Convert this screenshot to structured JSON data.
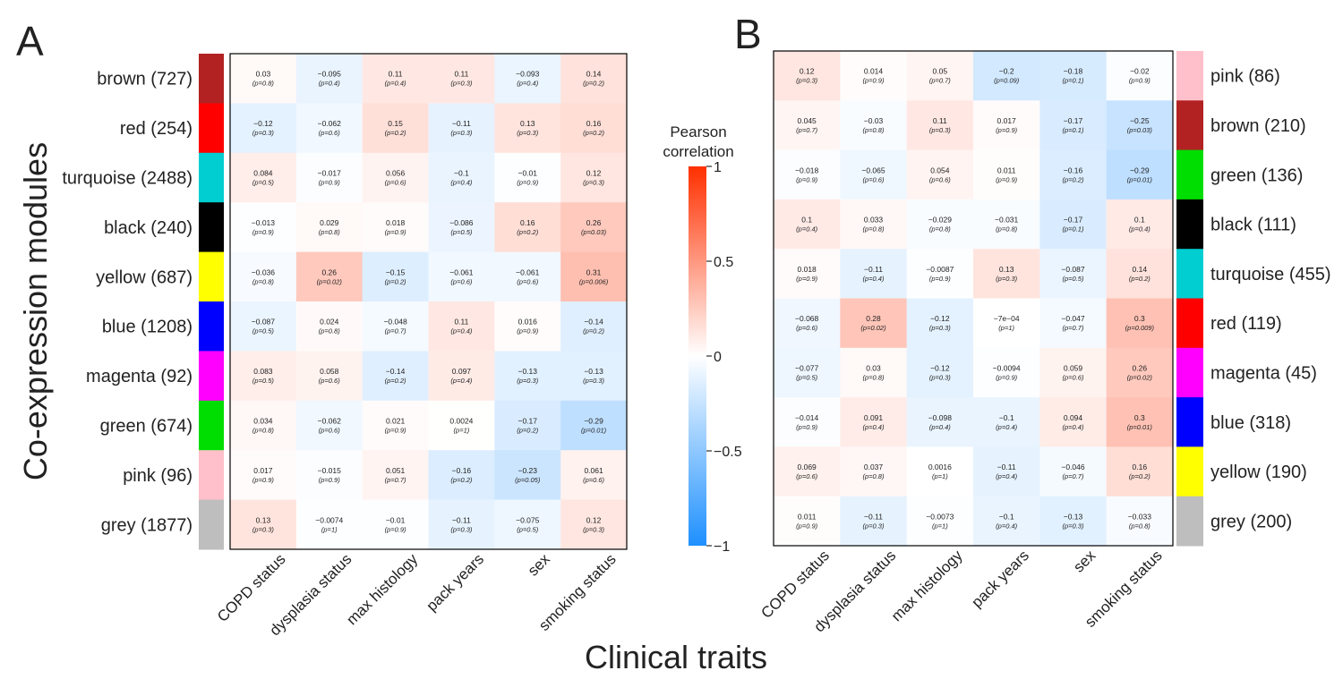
{
  "figure": {
    "y_axis_title": "Co-expression modules",
    "x_axis_title": "Clinical traits",
    "colorbar": {
      "title": [
        "Pearson",
        "correlation"
      ],
      "ticks": [
        {
          "value": 1,
          "label": "1"
        },
        {
          "value": 0.5,
          "label": "0.5"
        },
        {
          "value": 0,
          "label": "0"
        },
        {
          "value": -0.5,
          "label": "−0.5"
        },
        {
          "value": -1,
          "label": "−1"
        }
      ],
      "range": [
        -1,
        1
      ],
      "colors": {
        "negative": "#1E90FF",
        "zero": "#FFFFFF",
        "positive": "#FF3000"
      }
    }
  },
  "chart_data": [
    {
      "type": "heatmap",
      "panel": "A",
      "traits": [
        "COPD status",
        "dysplasia status",
        "max  histology",
        "pack  years",
        "sex",
        "smoking  status"
      ],
      "modules": [
        {
          "label": "brown (727)",
          "color": "#B22222"
        },
        {
          "label": "red (254)",
          "color": "#FF0000"
        },
        {
          "label": "turquoise (2488)",
          "color": "#00CED1"
        },
        {
          "label": "black (240)",
          "color": "#000000"
        },
        {
          "label": "yellow (687)",
          "color": "#FFFF00"
        },
        {
          "label": "blue (1208)",
          "color": "#0000FF"
        },
        {
          "label": "magenta (92)",
          "color": "#FF00FF"
        },
        {
          "label": "green (674)",
          "color": "#00DD00"
        },
        {
          "label": "pink (96)",
          "color": "#FFC0CB"
        },
        {
          "label": "grey (1877)",
          "color": "#BEBEBE"
        }
      ],
      "r": [
        [
          "0.03",
          "−0.095",
          "0.11",
          "0.11",
          "−0.093",
          "0.14"
        ],
        [
          "−0.12",
          "−0.062",
          "0.15",
          "−0.11",
          "0.13",
          "0.16"
        ],
        [
          "0.084",
          "−0.017",
          "0.056",
          "−0.1",
          "−0.01",
          "0.12"
        ],
        [
          "−0.013",
          "0.029",
          "0.018",
          "−0.086",
          "0.16",
          "0.26"
        ],
        [
          "−0.036",
          "0.26",
          "−0.15",
          "−0.061",
          "−0.061",
          "0.31"
        ],
        [
          "−0.087",
          "0.024",
          "−0.048",
          "0.11",
          "0.016",
          "−0.14"
        ],
        [
          "0.083",
          "0.058",
          "−0.14",
          "0.097",
          "−0.13",
          "−0.13"
        ],
        [
          "0.034",
          "−0.062",
          "0.021",
          "0.0024",
          "−0.17",
          "−0.29"
        ],
        [
          "0.017",
          "−0.015",
          "0.051",
          "−0.16",
          "−0.23",
          "0.061"
        ],
        [
          "0.13",
          "−0.0074",
          "−0.01",
          "−0.11",
          "−0.075",
          "0.12"
        ]
      ],
      "p": [
        [
          "(p=0.8)",
          "(p=0.4)",
          "(p=0.4)",
          "(p=0.3)",
          "(p=0.4)",
          "(p=0.2)"
        ],
        [
          "(p=0.3)",
          "(p=0.6)",
          "(p=0.2)",
          "(p=0.3)",
          "(p=0.3)",
          "(p=0.2)"
        ],
        [
          "(p=0.5)",
          "(p=0.9)",
          "(p=0.6)",
          "(p=0.4)",
          "(p=0.9)",
          "(p=0.3)"
        ],
        [
          "(p=0.9)",
          "(p=0.8)",
          "(p=0.9)",
          "(p=0.5)",
          "(p=0.2)",
          "(p=0.03)"
        ],
        [
          "(p=0.8)",
          "(p=0.02)",
          "(p=0.2)",
          "(p=0.6)",
          "(p=0.6)",
          "(p=0.006)"
        ],
        [
          "(p=0.5)",
          "(p=0.8)",
          "(p=0.7)",
          "(p=0.4)",
          "(p=0.9)",
          "(p=0.2)"
        ],
        [
          "(p=0.5)",
          "(p=0.6)",
          "(p=0.2)",
          "(p=0.4)",
          "(p=0.3)",
          "(p=0.3)"
        ],
        [
          "(p=0.8)",
          "(p=0.6)",
          "(p=0.9)",
          "(p=1)",
          "(p=0.2)",
          "(p=0.01)"
        ],
        [
          "(p=0.9)",
          "(p=0.9)",
          "(p=0.7)",
          "(p=0.2)",
          "(p=0.05)",
          "(p=0.6)"
        ],
        [
          "(p=0.3)",
          "(p=1)",
          "(p=0.9)",
          "(p=0.3)",
          "(p=0.5)",
          "(p=0.3)"
        ]
      ]
    },
    {
      "type": "heatmap",
      "panel": "B",
      "traits": [
        "COPD status",
        "dysplasia status",
        "max  histology",
        "pack  years",
        "sex",
        "smoking  status"
      ],
      "modules": [
        {
          "label": "pink (86)",
          "color": "#FFC0CB"
        },
        {
          "label": "brown (210)",
          "color": "#B22222"
        },
        {
          "label": "green (136)",
          "color": "#00DD00"
        },
        {
          "label": "black (111)",
          "color": "#000000"
        },
        {
          "label": "turquoise (455)",
          "color": "#00CED1"
        },
        {
          "label": "red (119)",
          "color": "#FF0000"
        },
        {
          "label": "magenta (45)",
          "color": "#FF00FF"
        },
        {
          "label": "blue (318)",
          "color": "#0000FF"
        },
        {
          "label": "yellow (190)",
          "color": "#FFFF00"
        },
        {
          "label": "grey (200)",
          "color": "#BEBEBE"
        }
      ],
      "r": [
        [
          "0.12",
          "0.014",
          "0.05",
          "−0.2",
          "−0.18",
          "−0.02"
        ],
        [
          "0.045",
          "−0.03",
          "0.11",
          "0.017",
          "−0.17",
          "−0.25"
        ],
        [
          "−0.018",
          "−0.065",
          "0.054",
          "0.011",
          "−0.16",
          "−0.29"
        ],
        [
          "0.1",
          "0.033",
          "−0.029",
          "−0.031",
          "−0.17",
          "0.1"
        ],
        [
          "0.018",
          "−0.11",
          "−0.0087",
          "0.13",
          "−0.087",
          "0.14"
        ],
        [
          "−0.068",
          "0.28",
          "−0.12",
          "−7e−04",
          "−0.047",
          "0.3"
        ],
        [
          "−0.077",
          "0.03",
          "−0.12",
          "−0.0094",
          "0.059",
          "0.26"
        ],
        [
          "−0.014",
          "0.091",
          "−0.098",
          "−0.1",
          "0.094",
          "0.3"
        ],
        [
          "0.069",
          "0.037",
          "0.0016",
          "−0.11",
          "−0.046",
          "0.16"
        ],
        [
          "0.011",
          "−0.11",
          "−0.0073",
          "−0.1",
          "−0.13",
          "−0.033"
        ]
      ],
      "p": [
        [
          "(p=0.3)",
          "(p=0.9)",
          "(p=0.7)",
          "(p=0.09)",
          "(p=0.1)",
          "(p=0.9)"
        ],
        [
          "(p=0.7)",
          "(p=0.8)",
          "(p=0.3)",
          "(p=0.9)",
          "(p=0.1)",
          "(p=0.03)"
        ],
        [
          "(p=0.9)",
          "(p=0.6)",
          "(p=0.6)",
          "(p=0.9)",
          "(p=0.2)",
          "(p=0.01)"
        ],
        [
          "(p=0.4)",
          "(p=0.8)",
          "(p=0.8)",
          "(p=0.8)",
          "(p=0.1)",
          "(p=0.4)"
        ],
        [
          "(p=0.9)",
          "(p=0.4)",
          "(p=0.9)",
          "(p=0.3)",
          "(p=0.5)",
          "(p=0.2)"
        ],
        [
          "(p=0.6)",
          "(p=0.02)",
          "(p=0.3)",
          "(p=1)",
          "(p=0.7)",
          "(p=0.009)"
        ],
        [
          "(p=0.5)",
          "(p=0.8)",
          "(p=0.3)",
          "(p=0.9)",
          "(p=0.6)",
          "(p=0.02)"
        ],
        [
          "(p=0.9)",
          "(p=0.4)",
          "(p=0.4)",
          "(p=0.4)",
          "(p=0.4)",
          "(p=0.01)"
        ],
        [
          "(p=0.6)",
          "(p=0.8)",
          "(p=1)",
          "(p=0.4)",
          "(p=0.7)",
          "(p=0.2)"
        ],
        [
          "(p=0.9)",
          "(p=0.3)",
          "(p=1)",
          "(p=0.4)",
          "(p=0.3)",
          "(p=0.8)"
        ]
      ]
    }
  ]
}
